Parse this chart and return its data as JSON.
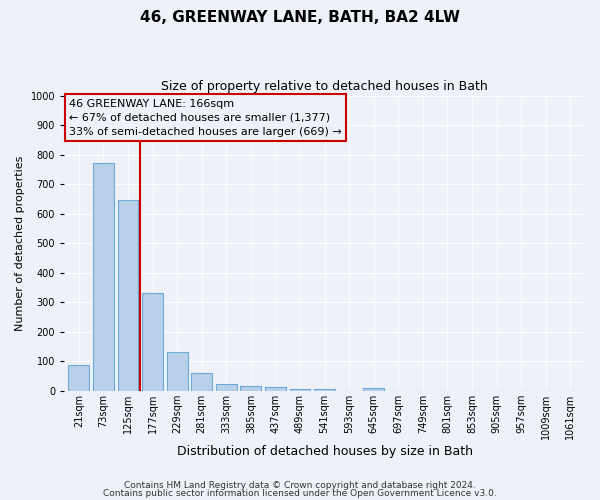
{
  "title": "46, GREENWAY LANE, BATH, BA2 4LW",
  "subtitle": "Size of property relative to detached houses in Bath",
  "xlabel": "Distribution of detached houses by size in Bath",
  "ylabel": "Number of detached properties",
  "footer_line1": "Contains HM Land Registry data © Crown copyright and database right 2024.",
  "footer_line2": "Contains public sector information licensed under the Open Government Licence v3.0.",
  "annotation_line1": "46 GREENWAY LANE: 166sqm",
  "annotation_line2": "← 67% of detached houses are smaller (1,377)",
  "annotation_line3": "33% of semi-detached houses are larger (669) →",
  "bar_labels": [
    "21sqm",
    "73sqm",
    "125sqm",
    "177sqm",
    "229sqm",
    "281sqm",
    "333sqm",
    "385sqm",
    "437sqm",
    "489sqm",
    "541sqm",
    "593sqm",
    "645sqm",
    "697sqm",
    "749sqm",
    "801sqm",
    "853sqm",
    "905sqm",
    "957sqm",
    "1009sqm",
    "1061sqm"
  ],
  "bar_values": [
    88,
    770,
    645,
    333,
    133,
    62,
    22,
    15,
    13,
    7,
    5,
    1,
    10,
    0,
    0,
    0,
    0,
    0,
    0,
    0,
    0
  ],
  "bar_color": "#b8d0ea",
  "bar_edge_color": "#6aaad4",
  "ref_line_x": 3.0,
  "ref_line_color": "#cc0000",
  "ylim": [
    0,
    1000
  ],
  "yticks": [
    0,
    100,
    200,
    300,
    400,
    500,
    600,
    700,
    800,
    900,
    1000
  ],
  "bg_color": "#eef2f8",
  "grid_color": "#ffffff",
  "ann_box_color": "#cc0000",
  "title_fontsize": 11,
  "subtitle_fontsize": 9,
  "ylabel_fontsize": 8,
  "xlabel_fontsize": 9,
  "tick_fontsize": 7,
  "footer_fontsize": 6.5,
  "ann_fontsize": 8
}
